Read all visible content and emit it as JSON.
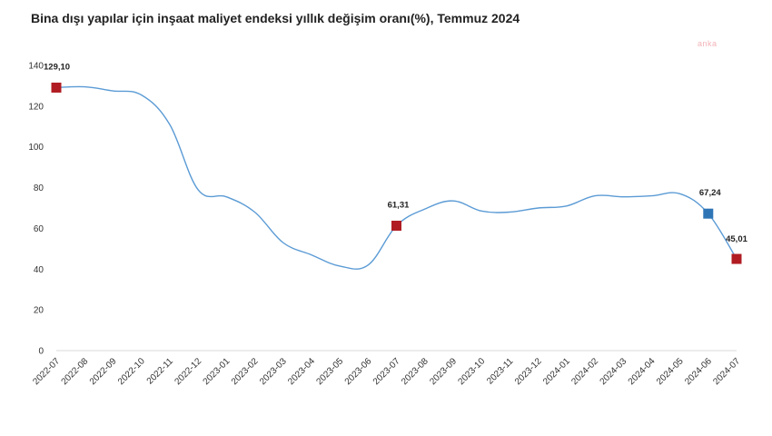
{
  "chart_data": {
    "type": "line",
    "title": "Bina dışı yapılar için inşaat maliyet endeksi yıllık değişim oranı(%), Temmuz 2024",
    "xlabel": "",
    "ylabel": "",
    "ylim": [
      0,
      140
    ],
    "yticks": [
      0,
      20,
      40,
      60,
      80,
      100,
      120,
      140
    ],
    "grid": false,
    "categories": [
      "2022-07",
      "2022-08",
      "2022-09",
      "2022-10",
      "2022-11",
      "2022-12",
      "2023-01",
      "2023-02",
      "2023-03",
      "2023-04",
      "2023-05",
      "2023-06",
      "2023-07",
      "2023-08",
      "2023-09",
      "2023-10",
      "2023-11",
      "2023-12",
      "2024-01",
      "2024-02",
      "2024-03",
      "2024-04",
      "2024-05",
      "2024-06",
      "2024-07"
    ],
    "series": [
      {
        "values": [
          129.1,
          129.5,
          127.5,
          125.5,
          111.0,
          79.0,
          75.5,
          68.0,
          53.0,
          47.0,
          41.5,
          42.0,
          61.31,
          69.5,
          73.5,
          68.5,
          68.0,
          70.0,
          71.0,
          76.0,
          75.5,
          76.0,
          77.0,
          67.24,
          45.01
        ],
        "color": "#5b9bd5"
      }
    ],
    "highlights": [
      {
        "index": 0,
        "label": "129,10",
        "color": "#b01c22"
      },
      {
        "index": 12,
        "label": "61,31",
        "color": "#b01c22"
      },
      {
        "index": 23,
        "label": "67,24",
        "color": "#2e75b6"
      },
      {
        "index": 24,
        "label": "45,01",
        "color": "#b01c22"
      }
    ]
  },
  "watermark": "anka"
}
